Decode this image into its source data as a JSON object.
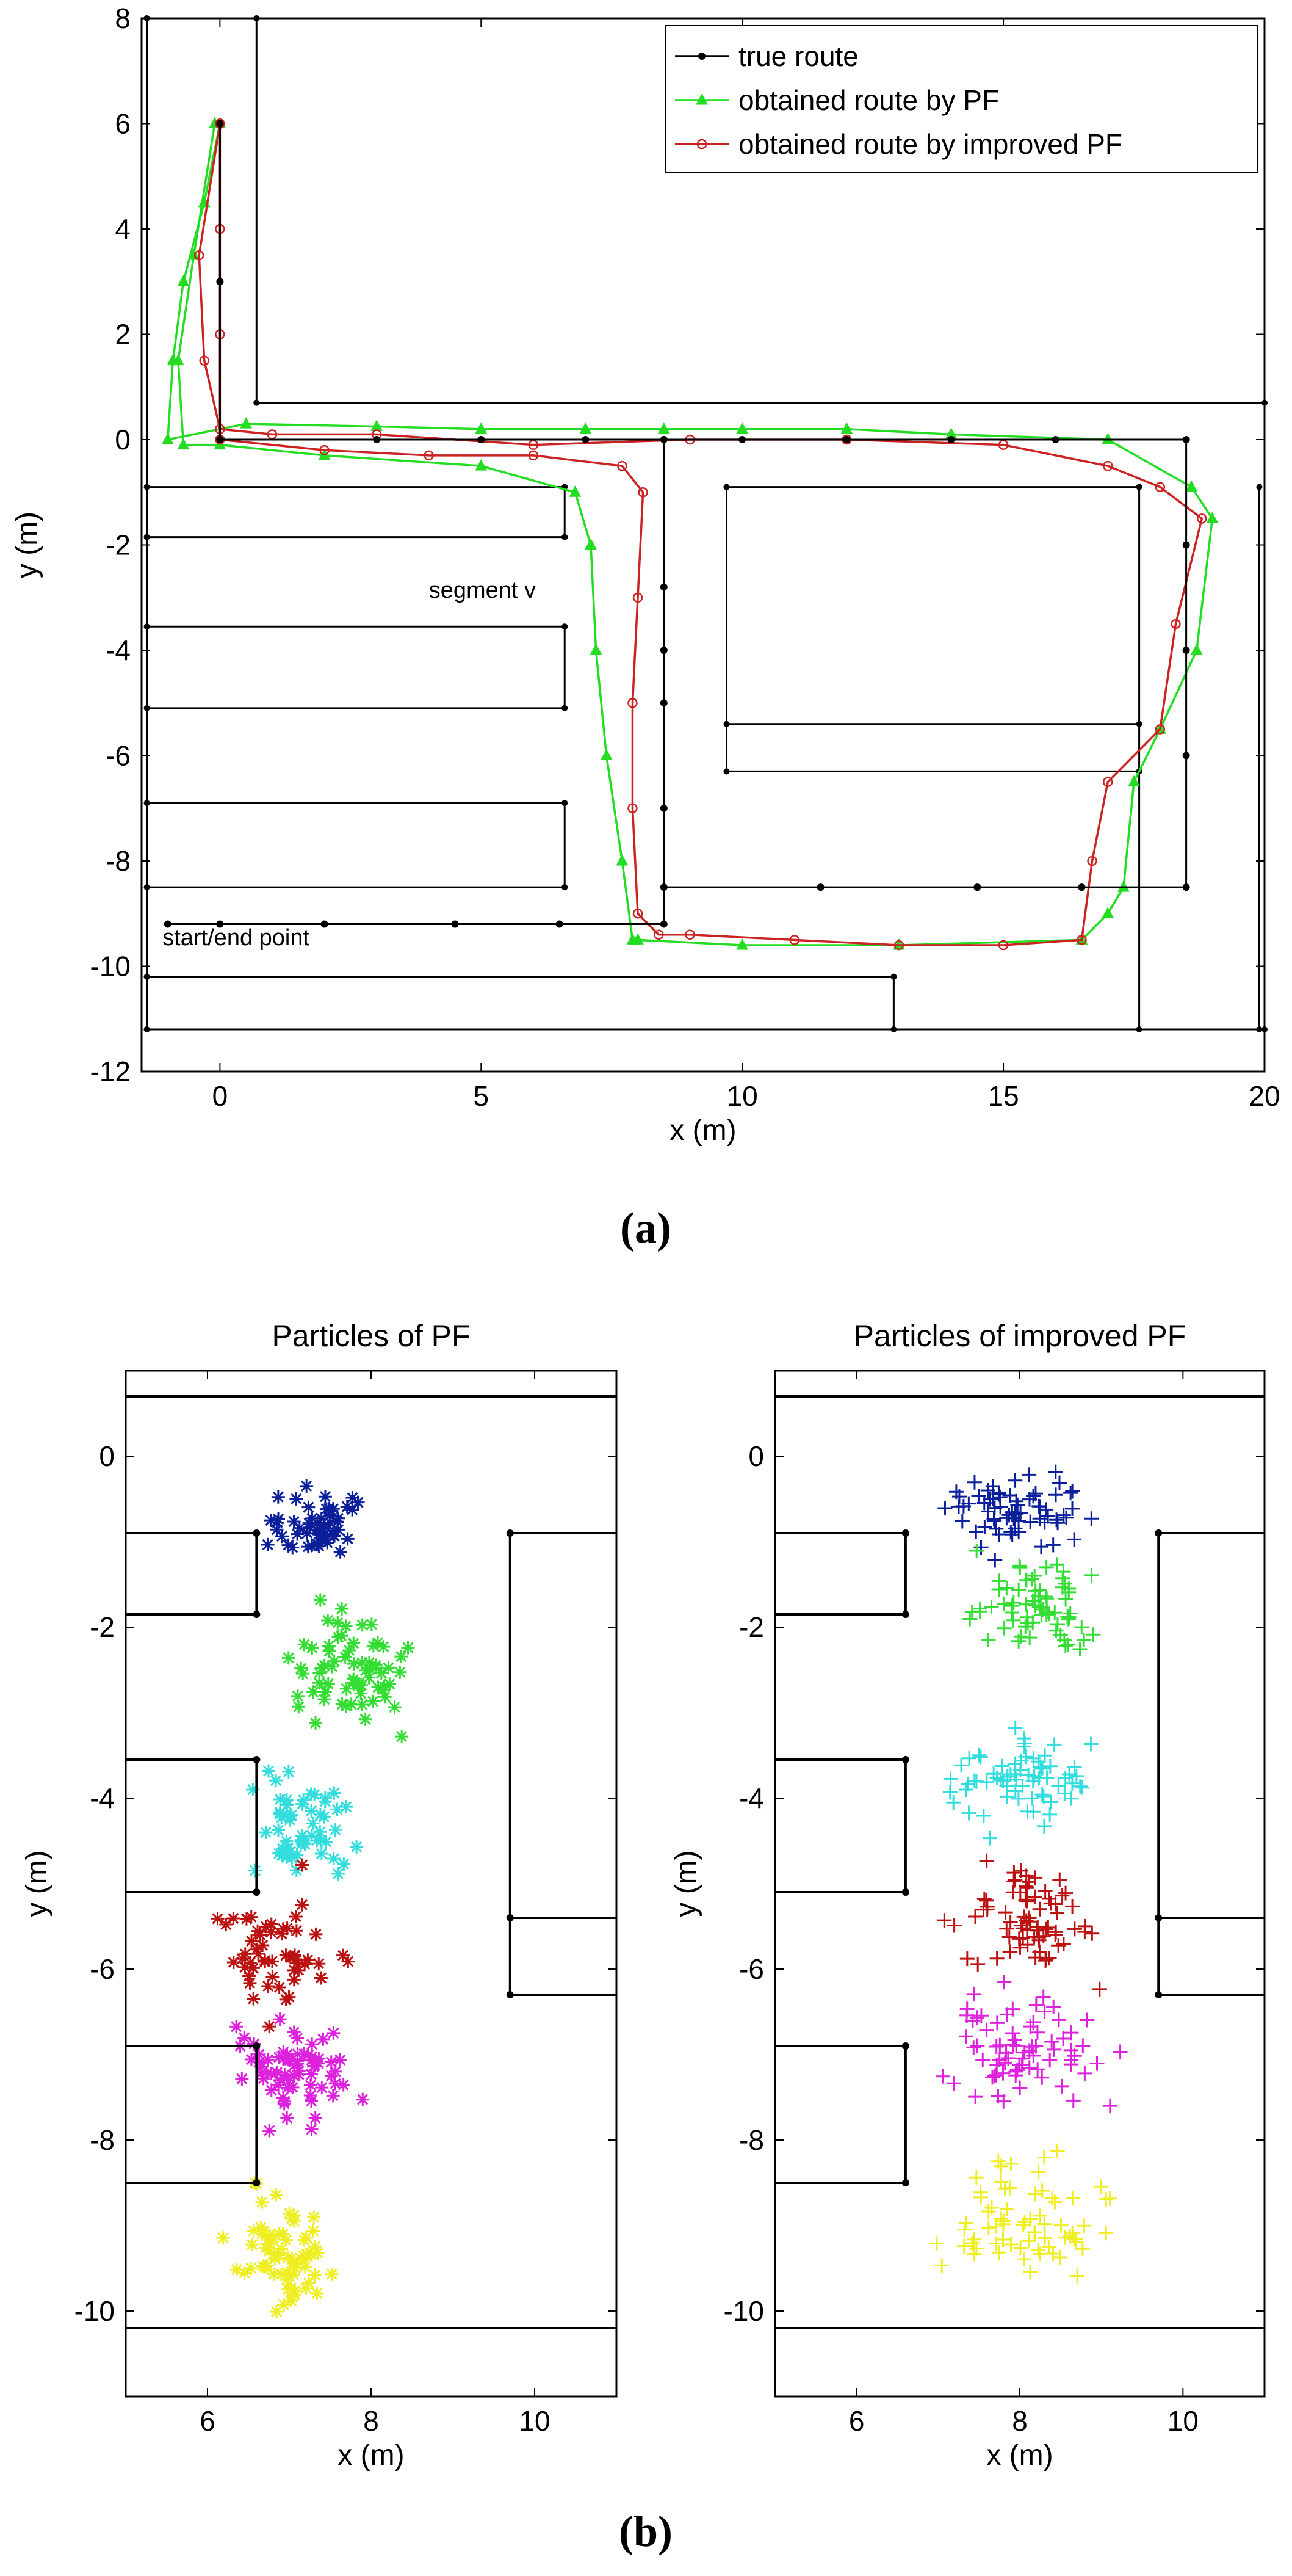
{
  "colors": {
    "true_route": "#000000",
    "pf": "#22dd22",
    "improved_pf": "#cc2222",
    "walls": "#000000",
    "particle_steps": [
      "#0a1f99",
      "#33dd33",
      "#33dddd",
      "#bb1111",
      "#dd22dd",
      "#eeee22"
    ]
  },
  "captions": {
    "a": "(a)",
    "b": "(b)"
  },
  "chart_data": [
    {
      "id": "a",
      "type": "line",
      "title": "",
      "xlabel": "x (m)",
      "ylabel": "y (m)",
      "xlim": [
        -1.5,
        20
      ],
      "ylim": [
        -12,
        8
      ],
      "xticks": [
        0,
        5,
        10,
        15,
        20
      ],
      "yticks": [
        8,
        6,
        4,
        2,
        0,
        -2,
        -4,
        -6,
        -8,
        -10,
        -12
      ],
      "legend_position": "top-right",
      "annotations": [
        {
          "text": "segment v",
          "x": 4.0,
          "y": -3.0
        },
        {
          "text": "start/end point",
          "x": -1.1,
          "y": -9.6
        }
      ],
      "walls": [
        [
          [
            -1.4,
            8
          ],
          [
            -1.4,
            -11.2
          ]
        ],
        [
          [
            0.7,
            8
          ],
          [
            0.7,
            0.7
          ]
        ],
        [
          [
            0.7,
            0.7
          ],
          [
            20,
            0.7
          ]
        ],
        [
          [
            -1.4,
            -0.9
          ],
          [
            6.6,
            -0.9
          ]
        ],
        [
          [
            6.6,
            -0.9
          ],
          [
            6.6,
            -1.85
          ]
        ],
        [
          [
            -1.4,
            -1.85
          ],
          [
            6.6,
            -1.85
          ]
        ],
        [
          [
            -1.4,
            -3.55
          ],
          [
            6.6,
            -3.55
          ]
        ],
        [
          [
            6.6,
            -3.55
          ],
          [
            6.6,
            -5.1
          ]
        ],
        [
          [
            -1.4,
            -5.1
          ],
          [
            6.6,
            -5.1
          ]
        ],
        [
          [
            -1.4,
            -6.9
          ],
          [
            6.6,
            -6.9
          ]
        ],
        [
          [
            6.6,
            -6.9
          ],
          [
            6.6,
            -8.5
          ]
        ],
        [
          [
            -1.4,
            -8.5
          ],
          [
            6.6,
            -8.5
          ]
        ],
        [
          [
            -1.4,
            -10.2
          ],
          [
            12.9,
            -10.2
          ]
        ],
        [
          [
            12.9,
            -10.2
          ],
          [
            12.9,
            -11.2
          ]
        ],
        [
          [
            -1.4,
            -11.2
          ],
          [
            20,
            -11.2
          ]
        ],
        [
          [
            9.7,
            -0.9
          ],
          [
            17.6,
            -0.9
          ]
        ],
        [
          [
            9.7,
            -0.9
          ],
          [
            9.7,
            -6.3
          ]
        ],
        [
          [
            9.7,
            -5.4
          ],
          [
            17.6,
            -5.4
          ]
        ],
        [
          [
            9.7,
            -6.3
          ],
          [
            17.6,
            -6.3
          ]
        ],
        [
          [
            17.6,
            -0.9
          ],
          [
            17.6,
            -11.2
          ]
        ],
        [
          [
            19.9,
            -0.9
          ],
          [
            19.9,
            -11.2
          ]
        ]
      ],
      "series": [
        {
          "name": "true route",
          "marker": "dot",
          "points": [
            [
              0,
              6
            ],
            [
              0,
              3
            ],
            [
              0,
              0
            ],
            [
              3,
              0
            ],
            [
              5,
              0
            ],
            [
              7,
              0
            ],
            [
              8.5,
              0
            ],
            [
              10,
              0
            ],
            [
              12,
              0
            ],
            [
              14,
              0
            ],
            [
              16,
              0
            ],
            [
              18.5,
              0
            ],
            [
              18.5,
              -2
            ],
            [
              18.5,
              -4
            ],
            [
              18.5,
              -6
            ],
            [
              18.5,
              -8.5
            ],
            [
              16.5,
              -8.5
            ],
            [
              14.5,
              -8.5
            ],
            [
              11.5,
              -8.5
            ],
            [
              8.5,
              -8.5
            ],
            [
              8.5,
              -7
            ],
            [
              8.5,
              -5
            ],
            [
              8.5,
              -2.8
            ],
            [
              8.5,
              0
            ],
            [
              8.5,
              -4
            ],
            [
              8.5,
              -9.2
            ],
            [
              6.5,
              -9.2
            ],
            [
              4.5,
              -9.2
            ],
            [
              2,
              -9.2
            ],
            [
              0,
              -9.2
            ],
            [
              -1,
              -9.2
            ]
          ]
        },
        {
          "name": "obtained route by PF",
          "marker": "triangle",
          "points": [
            [
              0,
              6
            ],
            [
              -0.3,
              4.5
            ],
            [
              -0.7,
              3
            ],
            [
              -0.9,
              1.5
            ],
            [
              -1,
              0
            ],
            [
              0.5,
              0.3
            ],
            [
              3,
              0.25
            ],
            [
              5,
              0.2
            ],
            [
              7,
              0.2
            ],
            [
              8.5,
              0.2
            ],
            [
              10,
              0.2
            ],
            [
              12,
              0.2
            ],
            [
              14,
              0.1
            ],
            [
              17,
              0
            ],
            [
              18.6,
              -0.9
            ],
            [
              19,
              -1.5
            ],
            [
              18.7,
              -4
            ],
            [
              18,
              -5.5
            ],
            [
              17.5,
              -6.5
            ],
            [
              17.3,
              -8.5
            ],
            [
              17,
              -9
            ],
            [
              16.5,
              -9.5
            ],
            [
              13,
              -9.6
            ],
            [
              10,
              -9.6
            ],
            [
              8,
              -9.5
            ],
            [
              7.9,
              -9.5
            ],
            [
              7.7,
              -8
            ],
            [
              7.4,
              -6
            ],
            [
              7.2,
              -4
            ],
            [
              7.1,
              -2
            ],
            [
              6.8,
              -1
            ],
            [
              5,
              -0.5
            ],
            [
              2,
              -0.3
            ],
            [
              0,
              -0.1
            ],
            [
              -0.7,
              -0.1
            ],
            [
              -0.8,
              1.5
            ],
            [
              -0.5,
              3.5
            ],
            [
              -0.1,
              6
            ]
          ]
        },
        {
          "name": "obtained route by improved PF",
          "marker": "circle",
          "points": [
            [
              0,
              6
            ],
            [
              0,
              4
            ],
            [
              0,
              2
            ],
            [
              0,
              0
            ],
            [
              2,
              -0.2
            ],
            [
              4,
              -0.3
            ],
            [
              6,
              -0.3
            ],
            [
              7.7,
              -0.5
            ],
            [
              8.1,
              -1
            ],
            [
              8,
              -3
            ],
            [
              7.9,
              -5
            ],
            [
              7.9,
              -7
            ],
            [
              8,
              -9
            ],
            [
              8.4,
              -9.4
            ],
            [
              9,
              -9.4
            ],
            [
              11,
              -9.5
            ],
            [
              13,
              -9.6
            ],
            [
              15,
              -9.6
            ],
            [
              16.5,
              -9.5
            ],
            [
              16.7,
              -8
            ],
            [
              17,
              -6.5
            ],
            [
              18,
              -5.5
            ],
            [
              18.3,
              -3.5
            ],
            [
              18.8,
              -1.5
            ],
            [
              18,
              -0.9
            ],
            [
              17,
              -0.5
            ],
            [
              15,
              -0.1
            ],
            [
              12,
              0
            ],
            [
              9,
              0
            ],
            [
              6,
              -0.1
            ],
            [
              3,
              0.1
            ],
            [
              1,
              0.1
            ],
            [
              0,
              0.2
            ],
            [
              -0.3,
              1.5
            ],
            [
              -0.4,
              3.5
            ],
            [
              0,
              6
            ]
          ]
        }
      ]
    },
    {
      "id": "b-left",
      "type": "scatter",
      "title": "Particles of PF",
      "xlabel": "x (m)",
      "ylabel": "y (m)",
      "xlim": [
        5,
        11
      ],
      "ylim": [
        -11,
        1
      ],
      "xticks": [
        6,
        8,
        10
      ],
      "yticks": [
        0,
        -2,
        -4,
        -6,
        -8,
        -10
      ],
      "marker": "asterisk",
      "clusters": [
        {
          "center": [
            7.3,
            -0.8
          ],
          "spread": [
            0.55,
            0.35
          ],
          "count": 55
        },
        {
          "center": [
            7.7,
            -2.5
          ],
          "spread": [
            0.6,
            0.5
          ],
          "count": 70
        },
        {
          "center": [
            7.2,
            -4.3
          ],
          "spread": [
            0.55,
            0.55
          ],
          "count": 55
        },
        {
          "center": [
            6.9,
            -5.8
          ],
          "spread": [
            0.6,
            0.55
          ],
          "count": 55
        },
        {
          "center": [
            7.0,
            -7.2
          ],
          "spread": [
            0.55,
            0.5
          ],
          "count": 70
        },
        {
          "center": [
            6.9,
            -9.2
          ],
          "spread": [
            0.45,
            0.55
          ],
          "count": 70
        }
      ]
    },
    {
      "id": "b-right",
      "type": "scatter",
      "title": "Particles of improved PF",
      "xlabel": "x (m)",
      "ylabel": "y (m)",
      "xlim": [
        5,
        11
      ],
      "ylim": [
        -11,
        1
      ],
      "xticks": [
        6,
        8,
        10
      ],
      "yticks": [
        0,
        -2,
        -4,
        -6,
        -8,
        -10
      ],
      "marker": "plus",
      "clusters": [
        {
          "center": [
            7.9,
            -0.6
          ],
          "spread": [
            0.7,
            0.35
          ],
          "count": 70
        },
        {
          "center": [
            8.2,
            -1.8
          ],
          "spread": [
            0.65,
            0.45
          ],
          "count": 70
        },
        {
          "center": [
            8.0,
            -3.8
          ],
          "spread": [
            0.75,
            0.45
          ],
          "count": 70
        },
        {
          "center": [
            8.1,
            -5.4
          ],
          "spread": [
            0.7,
            0.55
          ],
          "count": 75
        },
        {
          "center": [
            8.0,
            -7.0
          ],
          "spread": [
            0.75,
            0.55
          ],
          "count": 75
        },
        {
          "center": [
            8.1,
            -8.9
          ],
          "spread": [
            0.8,
            0.55
          ],
          "count": 70
        }
      ]
    }
  ]
}
